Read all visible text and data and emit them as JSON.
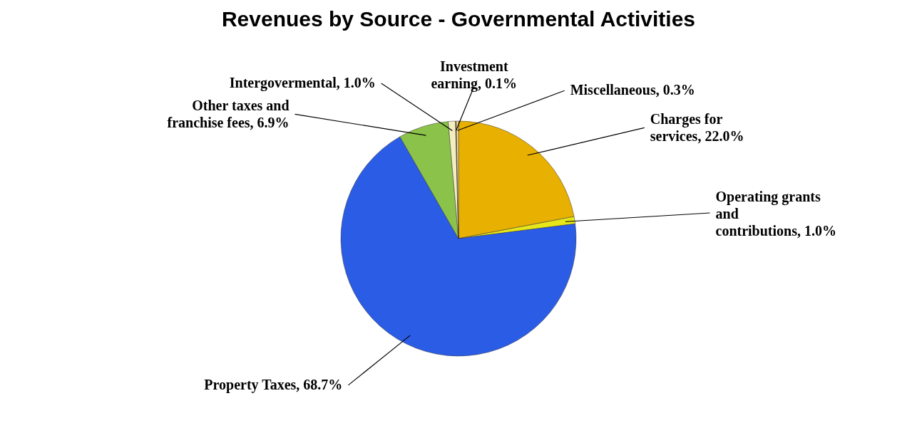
{
  "chart_data": {
    "type": "pie",
    "title": "Revenues by Source - Governmental Activities",
    "categories": [
      "Charges for services",
      "Operating grants and contributions",
      "Property Taxes",
      "Other taxes and franchise fees",
      "Intergovermental",
      "Investment earning",
      "Miscellaneous"
    ],
    "values": [
      22.0,
      1.0,
      68.7,
      6.9,
      1.0,
      0.1,
      0.3
    ],
    "colors": [
      "#e8b000",
      "#e6e619",
      "#2b5ce6",
      "#8bc34a",
      "#f2eebf",
      "#c0392b",
      "#f5e6a0"
    ],
    "value_labels": [
      "22.0%",
      "1.0%",
      "68.7%",
      "6.9%",
      "1.0%",
      "0.1%",
      "0.3%"
    ]
  }
}
